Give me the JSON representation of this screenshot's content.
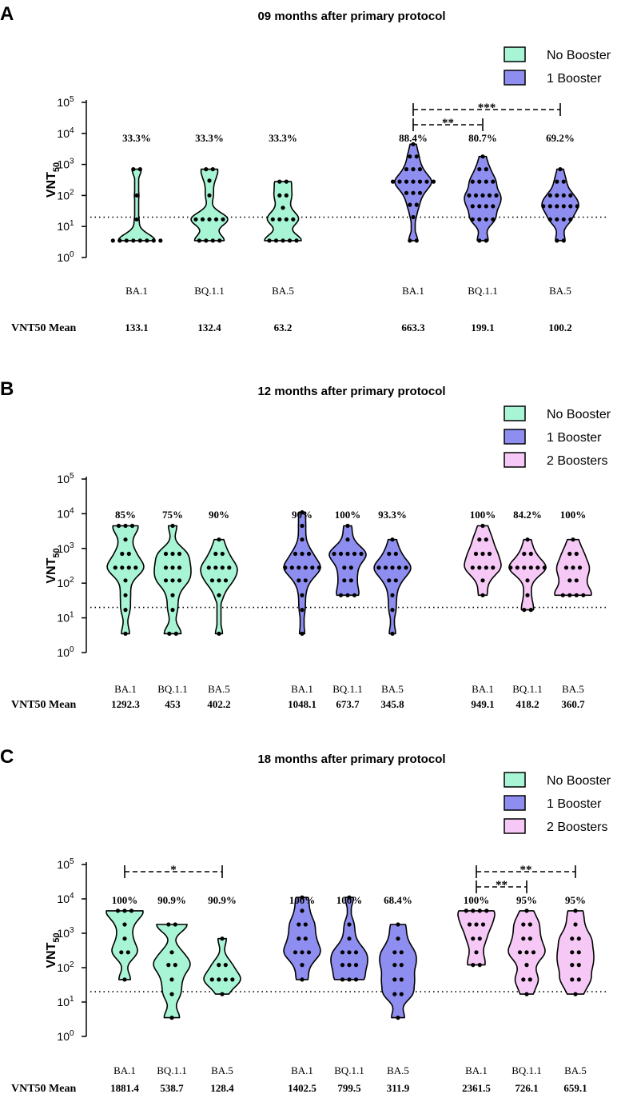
{
  "chart_data": [
    {
      "type": "violin",
      "panel_label": "A",
      "title": "09 months after primary protocol",
      "ylabel": "VNT50",
      "yscale": "log10",
      "ylim": [
        1,
        100000
      ],
      "yticks": [
        {
          "base": "10",
          "exp": "0"
        },
        {
          "base": "10",
          "exp": "1"
        },
        {
          "base": "10",
          "exp": "2"
        },
        {
          "base": "10",
          "exp": "3"
        },
        {
          "base": "10",
          "exp": "4"
        },
        {
          "base": "10",
          "exp": "5"
        }
      ],
      "threshold": 20,
      "legend": [
        {
          "label": "No Booster",
          "color": "#a8f5d5"
        },
        {
          "label": "1 Booster",
          "color": "#8e8ef0"
        }
      ],
      "mean_row_label": "VNT50 Mean",
      "groups": [
        {
          "category": "BA.1",
          "series": "No Booster",
          "percent": "33.3%",
          "mean": "133.1",
          "points": [
            3.5,
            3.5,
            3.5,
            3.5,
            3.5,
            3.5,
            3.5,
            3.5,
            17,
            100,
            700,
            700
          ]
        },
        {
          "category": "BQ.1.1",
          "series": "No Booster",
          "percent": "33.3%",
          "mean": "132.4",
          "points": [
            3.5,
            3.5,
            3.5,
            3.5,
            17,
            17,
            17,
            17,
            17,
            100,
            300,
            700,
            700
          ]
        },
        {
          "category": "BA.5",
          "series": "No Booster",
          "percent": "33.3%",
          "mean": "63.2",
          "points": [
            3.5,
            3.5,
            3.5,
            3.5,
            3.5,
            17,
            17,
            17,
            17,
            40,
            100,
            100,
            280,
            280
          ]
        },
        {
          "category": "BA.1",
          "series": "1 Booster",
          "percent": "88.4%",
          "mean": "663.3",
          "points": [
            3.5,
            3.5,
            20,
            50,
            50,
            120,
            120,
            120,
            280,
            280,
            280,
            280,
            280,
            280,
            280,
            700,
            700,
            700,
            1800,
            1800,
            4500
          ]
        },
        {
          "category": "BQ.1.1",
          "series": "1 Booster",
          "percent": "80.7%",
          "mean": "199.1",
          "points": [
            3.5,
            3.5,
            17,
            17,
            17,
            17,
            45,
            45,
            45,
            45,
            100,
            100,
            100,
            100,
            100,
            280,
            280,
            280,
            280,
            700,
            700,
            1800
          ]
        },
        {
          "category": "BA.5",
          "series": "1 Booster",
          "percent": "69.2%",
          "mean": "100.2",
          "points": [
            3.5,
            3.5,
            17,
            17,
            17,
            17,
            45,
            45,
            45,
            45,
            45,
            45,
            100,
            100,
            100,
            100,
            280,
            280,
            700
          ]
        }
      ],
      "comparisons": [
        {
          "from": 3,
          "to": 5,
          "label": "***"
        },
        {
          "from": 3,
          "to": 4,
          "label": "**"
        }
      ]
    },
    {
      "type": "violin",
      "panel_label": "B",
      "title": "12 months after primary protocol",
      "ylabel": "VNT50",
      "yscale": "log10",
      "ylim": [
        1,
        100000
      ],
      "yticks": [
        {
          "base": "10",
          "exp": "0"
        },
        {
          "base": "10",
          "exp": "1"
        },
        {
          "base": "10",
          "exp": "2"
        },
        {
          "base": "10",
          "exp": "3"
        },
        {
          "base": "10",
          "exp": "4"
        },
        {
          "base": "10",
          "exp": "5"
        }
      ],
      "threshold": 20,
      "legend": [
        {
          "label": "No Booster",
          "color": "#a8f5d5"
        },
        {
          "label": "1 Booster",
          "color": "#8e8ef0"
        },
        {
          "label": "2 Boosters",
          "color": "#f5c8f5"
        }
      ],
      "mean_row_label": "VNT50 Mean",
      "groups": [
        {
          "category": "BA.1",
          "series": "No Booster",
          "percent": "85%",
          "mean": "1292.3",
          "points": [
            3.5,
            17,
            45,
            120,
            280,
            280,
            280,
            280,
            700,
            700,
            1800,
            4500,
            4500,
            4500
          ]
        },
        {
          "category": "BQ.1.1",
          "series": "No Booster",
          "percent": "75%",
          "mean": "453",
          "points": [
            3.5,
            3.5,
            17,
            45,
            120,
            120,
            120,
            280,
            280,
            280,
            700,
            700,
            700,
            4500
          ]
        },
        {
          "category": "BA.5",
          "series": "No Booster",
          "percent": "90%",
          "mean": "402.2",
          "points": [
            3.5,
            45,
            120,
            120,
            120,
            280,
            280,
            280,
            280,
            700,
            700,
            1800
          ]
        },
        {
          "category": "BA.1",
          "series": "1 Booster",
          "percent": "90%",
          "mean": "1048.1",
          "points": [
            3.5,
            17,
            45,
            120,
            120,
            280,
            280,
            280,
            280,
            280,
            280,
            700,
            700,
            700,
            1800,
            4500,
            11000
          ]
        },
        {
          "category": "BQ.1.1",
          "series": "1 Booster",
          "percent": "100%",
          "mean": "673.7",
          "points": [
            45,
            45,
            45,
            120,
            120,
            280,
            280,
            700,
            700,
            700,
            700,
            700,
            1800,
            4500
          ]
        },
        {
          "category": "BA.5",
          "series": "1 Booster",
          "percent": "93.3%",
          "mean": "345.8",
          "points": [
            3.5,
            17,
            45,
            120,
            120,
            280,
            280,
            280,
            280,
            280,
            700,
            700,
            1800
          ]
        },
        {
          "category": "BA.1",
          "series": "2 Boosters",
          "percent": "100%",
          "mean": "949.1",
          "points": [
            45,
            120,
            280,
            280,
            280,
            280,
            700,
            700,
            700,
            1800,
            1800,
            4500
          ]
        },
        {
          "category": "BQ.1.1",
          "series": "2 Boosters",
          "percent": "84.2%",
          "mean": "418.2",
          "points": [
            17,
            17,
            45,
            120,
            280,
            280,
            280,
            280,
            280,
            280,
            700,
            700,
            1800
          ]
        },
        {
          "category": "BA.5",
          "series": "2 Boosters",
          "percent": "100%",
          "mean": "360.7",
          "points": [
            45,
            45,
            45,
            45,
            120,
            120,
            280,
            280,
            280,
            700,
            700,
            1800
          ]
        }
      ],
      "comparisons": []
    },
    {
      "type": "violin",
      "panel_label": "C",
      "title": "18 months after primary protocol",
      "ylabel": "VNT50",
      "yscale": "log10",
      "ylim": [
        1,
        100000
      ],
      "yticks": [
        {
          "base": "10",
          "exp": "0"
        },
        {
          "base": "10",
          "exp": "1"
        },
        {
          "base": "10",
          "exp": "2"
        },
        {
          "base": "10",
          "exp": "3"
        },
        {
          "base": "10",
          "exp": "4"
        },
        {
          "base": "10",
          "exp": "5"
        }
      ],
      "threshold": 20,
      "legend": [
        {
          "label": "No Booster",
          "color": "#a8f5d5"
        },
        {
          "label": "1 Booster",
          "color": "#8e8ef0"
        },
        {
          "label": "2 Boosters",
          "color": "#f5c8f5"
        }
      ],
      "mean_row_label": "VNT50 Mean",
      "groups": [
        {
          "category": "BA.1",
          "series": "No Booster",
          "percent": "100%",
          "mean": "1881.4",
          "points": [
            45,
            280,
            280,
            700,
            1800,
            4500,
            4500,
            4500
          ]
        },
        {
          "category": "BQ.1.1",
          "series": "No Booster",
          "percent": "90.9%",
          "mean": "538.7",
          "points": [
            3.5,
            17,
            45,
            120,
            120,
            280,
            1800,
            1800
          ]
        },
        {
          "category": "BA.5",
          "series": "No Booster",
          "percent": "90.9%",
          "mean": "128.4",
          "points": [
            17,
            45,
            45,
            45,
            45,
            120,
            120,
            700
          ]
        },
        {
          "category": "BA.1",
          "series": "1 Booster",
          "percent": "100%",
          "mean": "1402.5",
          "points": [
            45,
            120,
            280,
            280,
            280,
            700,
            700,
            1800,
            1800,
            4500,
            11000
          ]
        },
        {
          "category": "BQ.1.1",
          "series": "1 Booster",
          "percent": "100%",
          "mean": "799.5",
          "points": [
            45,
            45,
            45,
            120,
            120,
            120,
            280,
            280,
            280,
            700,
            1800,
            11000
          ]
        },
        {
          "category": "BA.5",
          "series": "1 Booster",
          "percent": "68.4%",
          "mean": "311.9",
          "points": [
            3.5,
            17,
            17,
            45,
            45,
            120,
            120,
            280,
            280,
            700,
            1800
          ]
        },
        {
          "category": "BA.1",
          "series": "2 Boosters",
          "percent": "100%",
          "mean": "2361.5",
          "points": [
            120,
            120,
            280,
            700,
            700,
            1800,
            1800,
            1800,
            4500,
            4500,
            4500,
            4500
          ]
        },
        {
          "category": "BQ.1.1",
          "series": "2 Boosters",
          "percent": "95%",
          "mean": "726.1",
          "points": [
            17,
            45,
            45,
            120,
            280,
            280,
            280,
            700,
            700,
            1800,
            1800,
            4500
          ]
        },
        {
          "category": "BA.5",
          "series": "2 Boosters",
          "percent": "95%",
          "mean": "659.1",
          "points": [
            17,
            45,
            45,
            120,
            120,
            280,
            280,
            700,
            700,
            1800,
            4500
          ]
        }
      ],
      "comparisons": [
        {
          "from": 0,
          "to": 2,
          "label": "*"
        },
        {
          "from": 6,
          "to": 8,
          "label": "**"
        },
        {
          "from": 6,
          "to": 7,
          "label": "**"
        }
      ]
    }
  ]
}
